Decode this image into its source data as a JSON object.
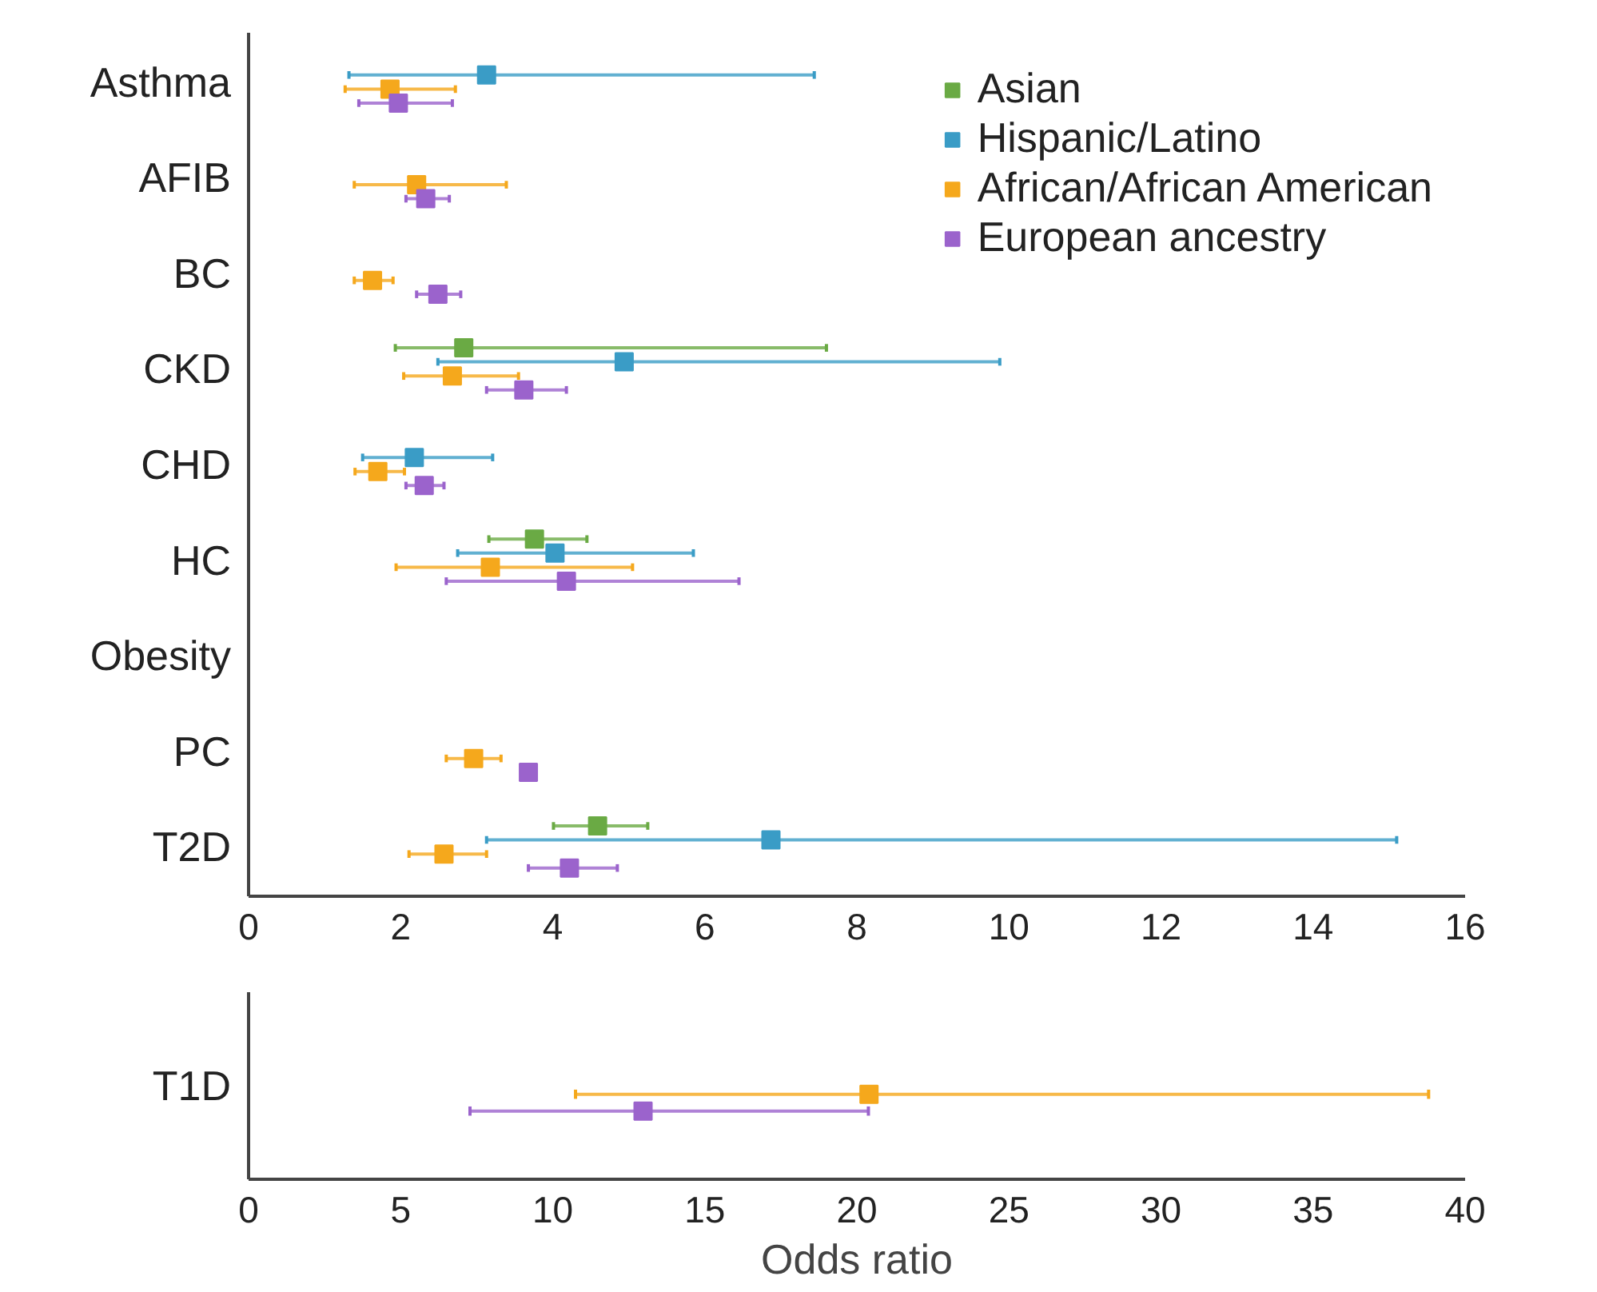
{
  "chart_data": [
    {
      "type": "scatter",
      "orientation": "horizontal",
      "categories": [
        "Asthma",
        "AFIB",
        "BC",
        "CKD",
        "CHD",
        "HC",
        "Obesity",
        "PC",
        "T2D"
      ],
      "xlim": [
        0,
        16
      ],
      "xticks": [
        0,
        2,
        4,
        6,
        8,
        10,
        12,
        14,
        16
      ],
      "marker": "square",
      "legend": "top right",
      "grid": false,
      "series": [
        {
          "name": "Asian",
          "color": "#6aaa44",
          "values": [
            null,
            null,
            null,
            2.83,
            null,
            3.76,
            null,
            null,
            4.59
          ],
          "errors": [
            null,
            null,
            null,
            [
              1.93,
              7.6
            ],
            null,
            [
              3.16,
              4.45
            ],
            null,
            null,
            [
              4.01,
              5.25
            ]
          ]
        },
        {
          "name": "Hispanic/Latino",
          "color": "#3a9cc6",
          "values": [
            3.13,
            null,
            null,
            4.94,
            2.18,
            4.03,
            null,
            null,
            6.87
          ],
          "errors": [
            [
              1.32,
              7.44
            ],
            null,
            null,
            [
              2.49,
              9.88
            ],
            [
              1.5,
              3.21
            ],
            [
              2.75,
              5.85
            ],
            null,
            null,
            [
              3.13,
              15.1
            ]
          ]
        },
        {
          "name": "African/African American",
          "color": "#f5a81c",
          "values": [
            1.86,
            2.21,
            1.63,
            2.68,
            1.7,
            3.18,
            null,
            2.96,
            2.57
          ],
          "errors": [
            [
              1.27,
              2.72
            ],
            [
              1.39,
              3.39
            ],
            [
              1.39,
              1.9
            ],
            [
              2.04,
              3.55
            ],
            [
              1.4,
              2.05
            ],
            [
              1.94,
              5.05
            ],
            null,
            [
              2.6,
              3.32
            ],
            [
              2.11,
              3.13
            ]
          ]
        },
        {
          "name": "European ancestry",
          "color": "#9b63cc",
          "values": [
            1.97,
            2.33,
            2.49,
            3.62,
            2.31,
            4.18,
            null,
            3.68,
            4.22
          ],
          "errors": [
            [
              1.45,
              2.68
            ],
            [
              2.07,
              2.64
            ],
            [
              2.21,
              2.79
            ],
            [
              3.13,
              4.18
            ],
            [
              2.07,
              2.57
            ],
            [
              2.6,
              6.45
            ],
            null,
            null,
            [
              3.68,
              4.85
            ]
          ]
        }
      ]
    },
    {
      "type": "scatter",
      "orientation": "horizontal",
      "categories": [
        "T1D"
      ],
      "xlim": [
        0,
        40
      ],
      "xticks": [
        0,
        5,
        10,
        15,
        20,
        25,
        30,
        35,
        40
      ],
      "xlabel": "Odds ratio",
      "marker": "square",
      "grid": false,
      "series": [
        {
          "color": "#6aaa44",
          "values": [
            null
          ],
          "errors": [
            null
          ]
        },
        {
          "color": "#3a9cc6",
          "values": [
            null
          ],
          "errors": [
            null
          ]
        },
        {
          "color": "#f5a81c",
          "values": [
            20.4
          ],
          "errors": [
            [
              10.75,
              38.8
            ]
          ]
        },
        {
          "color": "#9b63cc",
          "values": [
            12.97
          ],
          "errors": [
            [
              7.28,
              20.38
            ]
          ]
        }
      ]
    }
  ]
}
